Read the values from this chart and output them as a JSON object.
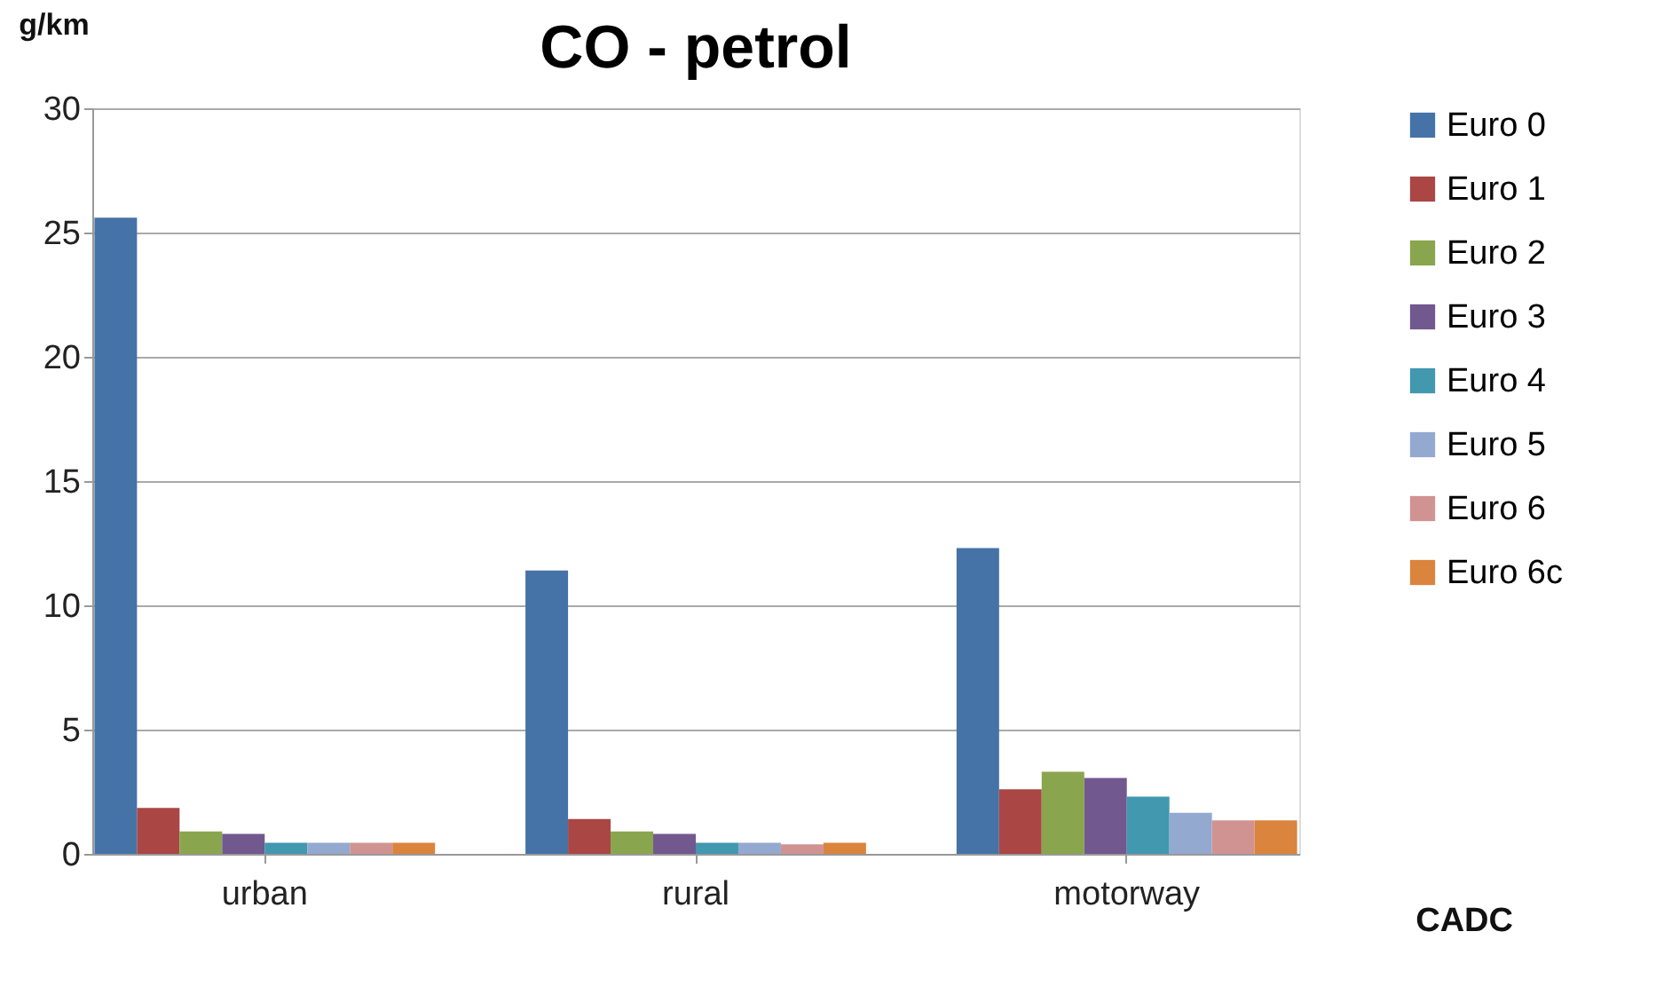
{
  "chart_data": {
    "type": "bar",
    "title": "CO - petrol",
    "ylabel": "g/km",
    "xlabel": "CADC",
    "categories": [
      "urban",
      "rural",
      "motorway"
    ],
    "series": [
      {
        "name": "Euro 0",
        "color": "#4572a7",
        "values": [
          25.6,
          11.4,
          12.3
        ]
      },
      {
        "name": "Euro 1",
        "color": "#aa4643",
        "values": [
          1.85,
          1.4,
          2.6
        ]
      },
      {
        "name": "Euro 2",
        "color": "#89a54e",
        "values": [
          0.9,
          0.9,
          3.3
        ]
      },
      {
        "name": "Euro 3",
        "color": "#71588f",
        "values": [
          0.8,
          0.8,
          3.05
        ]
      },
      {
        "name": "Euro 4",
        "color": "#4198af",
        "values": [
          0.45,
          0.45,
          2.3
        ]
      },
      {
        "name": "Euro 5",
        "color": "#93a9d0",
        "values": [
          0.45,
          0.45,
          1.65
        ]
      },
      {
        "name": "Euro 6",
        "color": "#d09392",
        "values": [
          0.45,
          0.38,
          1.35
        ]
      },
      {
        "name": "Euro 6c",
        "color": "#db843d",
        "values": [
          0.45,
          0.45,
          1.35
        ]
      }
    ],
    "ylim": [
      0,
      30
    ],
    "yticks": [
      0,
      5,
      10,
      15,
      20,
      25,
      30
    ],
    "grid": "y",
    "legend": "right"
  }
}
